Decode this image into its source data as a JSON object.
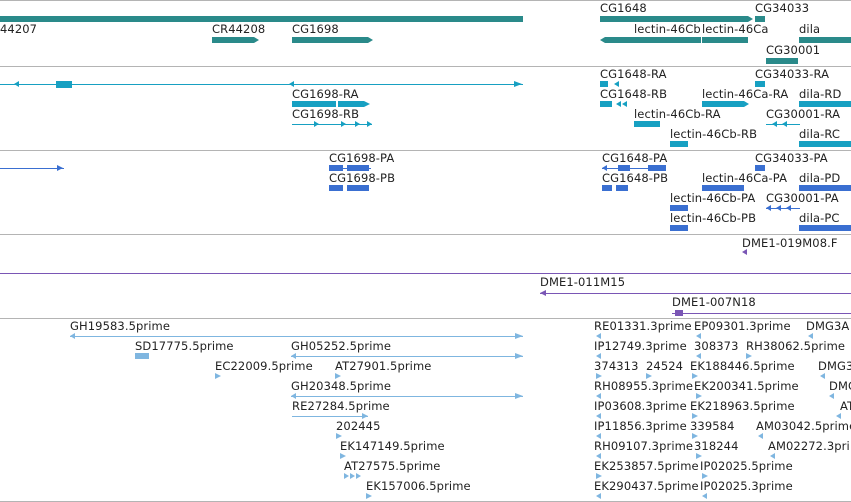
{
  "colors": {
    "gene_track": "#2a8a8a",
    "transcript_track": "#17a0c2",
    "protein_track": "#3a6fd1",
    "clone_track": "#7a56b5",
    "est_track": "#7fb6e0",
    "separator": "#b4b4b4",
    "label": "#222222"
  },
  "tracks": {
    "genes": {
      "labels": [
        "44207",
        "CR44208",
        "CG1698",
        "CG1648",
        "lectin-46Cb",
        "lectin-46Ca",
        "CG34033",
        "dila",
        "CG30001"
      ]
    },
    "transcripts": {
      "labels": [
        "CG1698-RA",
        "CG1698-RB",
        "CG1648-RA",
        "CG1648-RB",
        "lectin-46Cb-RA",
        "lectin-46Cb-RB",
        "lectin-46Ca-RA",
        "CG34033-RA",
        "dila-RD",
        "CG30001-RA",
        "dila-RC"
      ]
    },
    "proteins": {
      "labels": [
        "CG1698-PA",
        "CG1698-PB",
        "CG1648-PA",
        "CG1648-PB",
        "lectin-46Cb-PA",
        "lectin-46Cb-PB",
        "lectin-46Ca-PA",
        "CG34033-PA",
        "dila-PD",
        "CG30001-PA",
        "dila-PC"
      ]
    },
    "clones_a": {
      "labels": [
        "DME1-019M08.F"
      ]
    },
    "clones_b": {
      "labels": [
        "DME1-011M15",
        "DME1-007N18"
      ]
    },
    "ests": {
      "labels": [
        "GH19583.5prime",
        "SD17775.5prime",
        "GH05252.5prime",
        "EC22009.5prime",
        "AT27901.5prime",
        "GH20348.5prime",
        "RE27284.5prime",
        "202445",
        "EK147149.5prime",
        "AT27575.5prime",
        "EK157006.5prime",
        "RE01331.3prime",
        "EP09301.3prime",
        "DMG3A",
        "IP12749.3prime",
        "308373",
        "RH38062.5prime",
        "374313",
        "24524",
        "EK188446.5prime",
        "DMG3",
        "RH08955.3prime",
        "EK200341.5prime",
        "DMG",
        "IP03608.3prime",
        "EK218963.5prime",
        "AT",
        "IP11856.3prime",
        "339584",
        "AM03042.5prime",
        "RH09107.3prime",
        "318244",
        "AM02272.3pri",
        "EK253857.5prime",
        "IP02025.5prime",
        "EK290437.5prime",
        "IP02025.3prime"
      ]
    }
  }
}
